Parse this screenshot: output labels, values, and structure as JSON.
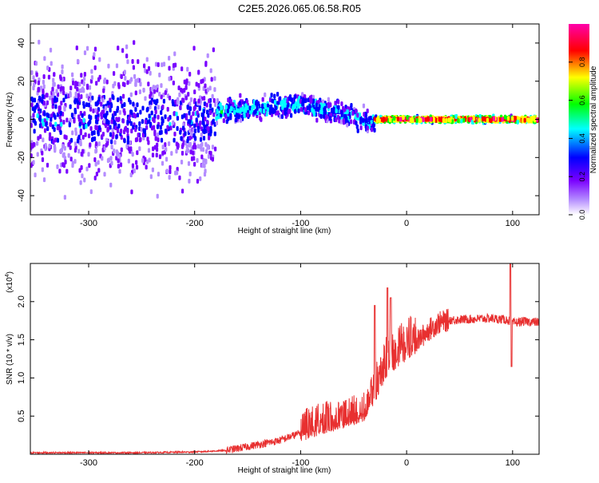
{
  "title": "C2E5.2026.065.06.58.R05",
  "chart_data": [
    {
      "type": "heatmap",
      "xlabel": "Height of straight line (km)",
      "ylabel": "Frequency (Hz)",
      "xlim": [
        -355,
        125
      ],
      "ylim": [
        -50,
        50
      ],
      "x_ticks": [
        -300,
        -200,
        -100,
        0,
        100
      ],
      "y_ticks": [
        -40,
        -20,
        0,
        20,
        40
      ],
      "colorbar": {
        "label": "Normalized spectral amplitude",
        "range": [
          0,
          1
        ],
        "ticks": [
          "0.0",
          "0.2",
          "0.4",
          "0.6",
          "0.8"
        ],
        "colors": [
          "#ffffff",
          "#b48cff",
          "#7a00ff",
          "#0000ff",
          "#00ffff",
          "#00ff00",
          "#ffff00",
          "#ff0000",
          "#ff00aa"
        ]
      },
      "regions": [
        {
          "x_from": -355,
          "x_to": -180,
          "center_freq": 0,
          "spread": 45,
          "level": 0.2
        },
        {
          "x_from": -180,
          "x_to": -100,
          "center_freq": 8,
          "spread": 8,
          "level": 0.35
        },
        {
          "x_from": -100,
          "x_to": -30,
          "center_freq": 3,
          "spread": 8,
          "level": 0.3
        },
        {
          "x_from": -30,
          "x_to": 125,
          "center_freq": 0,
          "spread": 2,
          "level": 0.85
        }
      ]
    },
    {
      "type": "line",
      "xlabel": "Height of straight line (km)",
      "ylabel": "SNR (10 * v/v)",
      "y_multiplier": "(x10",
      "y_multiplier_exp": "4",
      "xlim": [
        -355,
        125
      ],
      "ylim": [
        0,
        2.5
      ],
      "x_ticks": [
        -300,
        -200,
        -100,
        0,
        100
      ],
      "y_ticks": [
        "0.5",
        "1.0",
        "1.5",
        "2.0"
      ],
      "color": "#e83030",
      "series": [
        {
          "values_x": [
            -355,
            -250,
            -200,
            -170,
            -150,
            -120,
            -100,
            -80,
            -60,
            -40,
            -30,
            -20,
            -10,
            0,
            10,
            20,
            30,
            40,
            60,
            80,
            95,
            100,
            110,
            125
          ],
          "values_y": [
            0.02,
            0.02,
            0.03,
            0.05,
            0.1,
            0.18,
            0.28,
            0.38,
            0.45,
            0.55,
            0.8,
            1.15,
            1.28,
            1.38,
            1.48,
            1.62,
            1.72,
            1.76,
            1.77,
            1.78,
            1.76,
            1.72,
            1.74,
            1.73
          ]
        }
      ]
    }
  ]
}
